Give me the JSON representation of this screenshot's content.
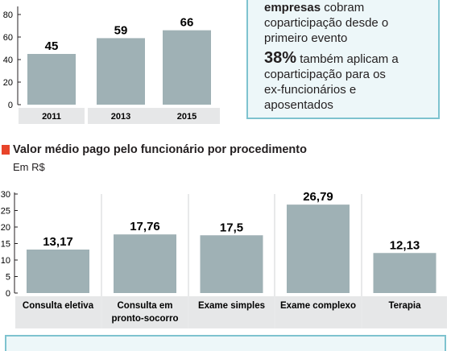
{
  "chart_data": [
    {
      "type": "bar",
      "categories": [
        "2011",
        "2013",
        "2015"
      ],
      "values": [
        45,
        59,
        66
      ],
      "y_ticks": [
        "0",
        "20",
        "40",
        "60",
        "80"
      ],
      "y_tick_values": [
        0,
        20,
        40,
        60,
        80
      ],
      "ylim": [
        0,
        80
      ],
      "grid": false,
      "bar_color": "#9fb1b5"
    },
    {
      "type": "bar",
      "title": "Valor médio pago pelo funcionário por procedimento",
      "subtitle": "Em R$",
      "categories": [
        [
          "Consulta eletiva"
        ],
        [
          "Consulta em",
          "pronto-socorro"
        ],
        [
          "Exame simples"
        ],
        [
          "Exame complexo"
        ],
        [
          "Terapia"
        ]
      ],
      "values": [
        13.17,
        17.76,
        17.5,
        26.79,
        12.13
      ],
      "value_labels": [
        "13,17",
        "17,76",
        "17,5",
        "26,79",
        "12,13"
      ],
      "y_ticks": [
        "0",
        "5",
        "10",
        "15",
        "20",
        "25",
        "30"
      ],
      "y_tick_values": [
        0,
        5,
        10,
        15,
        20,
        25,
        30
      ],
      "ylim": [
        0,
        30
      ],
      "grid": false,
      "bar_color": "#9fb1b5"
    }
  ],
  "infobox": {
    "line1_strong": "empresas",
    "line1_rest": " cobram",
    "line2": "coparticipação desde o",
    "line3": "primeiro evento",
    "pct": "38%",
    "line4_rest": " também aplicam a",
    "line5": "coparticipação para os",
    "line6": "ex-funcionários e aposentados"
  },
  "colors": {
    "accent_square": "#e8442a",
    "box_border": "#7ec3cf",
    "box_fill": "#edf7f9",
    "bar": "#9fb1b5",
    "category_band": "#e6e7e8"
  }
}
